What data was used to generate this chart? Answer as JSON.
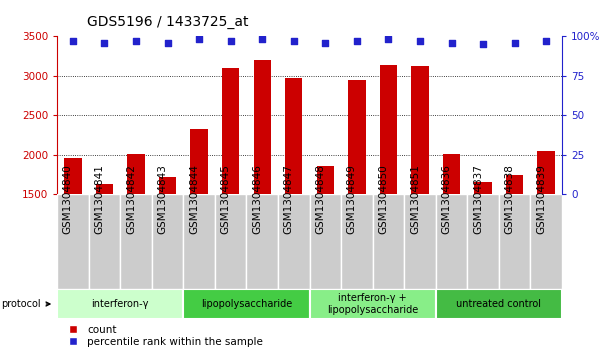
{
  "title": "GDS5196 / 1433725_at",
  "samples": [
    "GSM1304840",
    "GSM1304841",
    "GSM1304842",
    "GSM1304843",
    "GSM1304844",
    "GSM1304845",
    "GSM1304846",
    "GSM1304847",
    "GSM1304848",
    "GSM1304849",
    "GSM1304850",
    "GSM1304851",
    "GSM1304836",
    "GSM1304837",
    "GSM1304838",
    "GSM1304839"
  ],
  "counts": [
    1960,
    1630,
    2010,
    1720,
    2320,
    3100,
    3200,
    2970,
    1860,
    2950,
    3140,
    3120,
    2010,
    1650,
    1740,
    2050
  ],
  "percentile_ranks": [
    97,
    96,
    97,
    96,
    98,
    97,
    98,
    97,
    96,
    97,
    98,
    97,
    96,
    95,
    96,
    97
  ],
  "groups": [
    {
      "label": "interferon-γ",
      "start": 0,
      "end": 4,
      "color": "#ccffcc"
    },
    {
      "label": "lipopolysaccharide",
      "start": 4,
      "end": 8,
      "color": "#44cc44"
    },
    {
      "label": "interferon-γ +\nlipopolysaccharide",
      "start": 8,
      "end": 12,
      "color": "#88ee88"
    },
    {
      "label": "untreated control",
      "start": 12,
      "end": 16,
      "color": "#44bb44"
    }
  ],
  "ylim_left": [
    1500,
    3500
  ],
  "ylim_right": [
    0,
    100
  ],
  "left_yticks": [
    1500,
    2000,
    2500,
    3000,
    3500
  ],
  "right_yticks": [
    0,
    25,
    50,
    75,
    100
  ],
  "right_yticklabels": [
    "0",
    "25",
    "50",
    "75",
    "100%"
  ],
  "grid_yticks": [
    2000,
    2500,
    3000
  ],
  "bar_color": "#cc0000",
  "dot_color": "#2222cc",
  "tick_color_left": "#cc0000",
  "tick_color_right": "#2222cc",
  "sample_bg_color": "#cccccc",
  "title_fontsize": 10,
  "axis_fontsize": 7.5,
  "group_fontsize": 7,
  "legend_fontsize": 7.5
}
